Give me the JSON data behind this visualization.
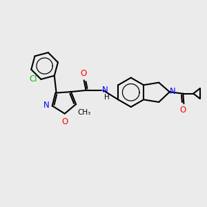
{
  "background_color": "#ebebeb",
  "bond_color": "#000000",
  "bond_width": 1.5,
  "atom_colors": {
    "Cl": "#00bb00",
    "N": "#0000ff",
    "O": "#ff0000",
    "C": "#000000"
  },
  "font_size_atom": 8.5,
  "font_size_methyl": 7.5
}
